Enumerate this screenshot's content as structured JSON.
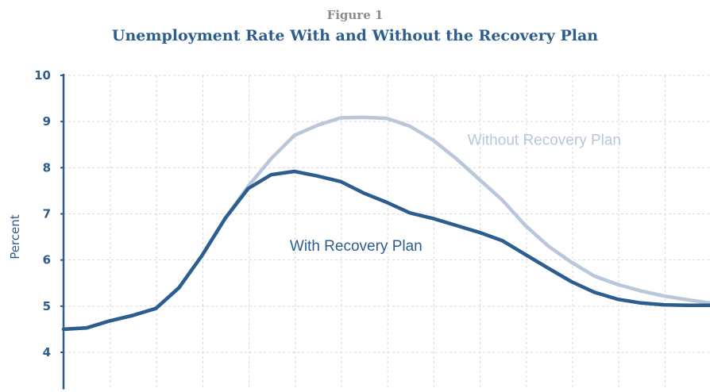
{
  "figure_label": "Figure 1",
  "chart_data": {
    "type": "line",
    "title": "Unemployment Rate With and Without the Recovery Plan",
    "xlabel": "",
    "ylabel": "Percent",
    "ylim": [
      3.2,
      10
    ],
    "yticks": [
      4,
      5,
      6,
      7,
      8,
      9,
      10
    ],
    "xlim": [
      0,
      28
    ],
    "grid": true,
    "x": [
      0,
      1,
      2,
      3,
      4,
      5,
      6,
      7,
      8,
      9,
      10,
      11,
      12,
      13,
      14,
      15,
      16,
      17,
      18,
      19,
      20,
      21,
      22,
      23,
      24,
      25,
      26,
      27,
      28
    ],
    "series": [
      {
        "name": "Without Recovery Plan",
        "color": "#b9c7d9",
        "values": [
          4.5,
          4.53,
          4.68,
          4.8,
          4.95,
          5.4,
          6.1,
          6.9,
          7.6,
          8.2,
          8.7,
          8.92,
          9.08,
          9.09,
          9.07,
          8.9,
          8.6,
          8.2,
          7.75,
          7.3,
          6.75,
          6.3,
          5.95,
          5.65,
          5.47,
          5.33,
          5.22,
          5.14,
          5.07
        ]
      },
      {
        "name": "With Recovery Plan",
        "color": "#2c5d8f",
        "values": [
          4.5,
          4.53,
          4.68,
          4.8,
          4.95,
          5.4,
          6.1,
          6.9,
          7.55,
          7.85,
          7.92,
          7.82,
          7.7,
          7.45,
          7.25,
          7.02,
          6.9,
          6.75,
          6.6,
          6.42,
          6.12,
          5.82,
          5.53,
          5.3,
          5.15,
          5.07,
          5.03,
          5.02,
          5.02
        ]
      }
    ]
  }
}
